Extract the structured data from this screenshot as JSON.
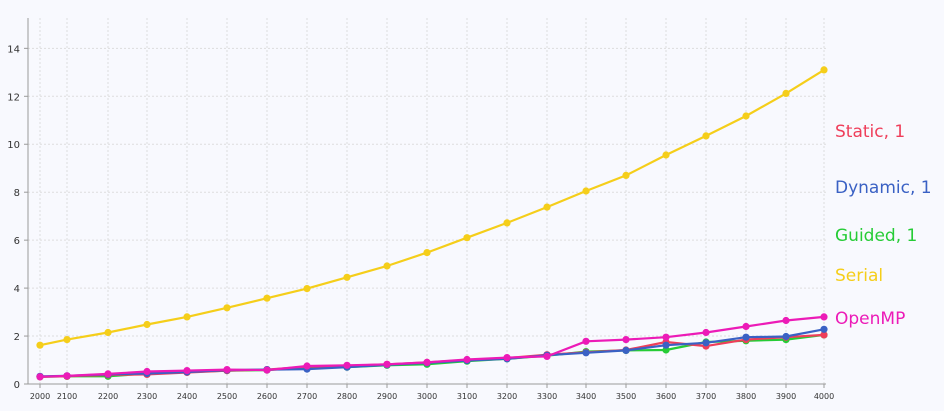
{
  "chart_data": {
    "type": "line",
    "title": "",
    "xlabel": "",
    "ylabel": "",
    "x": [
      2000,
      2100,
      2200,
      2300,
      2400,
      2500,
      2600,
      2700,
      2800,
      2900,
      3000,
      3100,
      3200,
      3300,
      3400,
      3500,
      3600,
      3700,
      3800,
      3900,
      4000
    ],
    "y_ticks": [
      0,
      2,
      4,
      6,
      8,
      10,
      12,
      14
    ],
    "ylim": [
      0,
      15
    ],
    "grid": true,
    "legend_position": "right",
    "series": [
      {
        "name": "Static, 1",
        "color": "#ef3e5a",
        "values": [
          0.3,
          0.32,
          0.38,
          0.4,
          0.48,
          0.56,
          0.6,
          0.72,
          0.75,
          0.82,
          0.9,
          1.0,
          1.08,
          1.22,
          1.32,
          1.42,
          1.75,
          1.58,
          1.85,
          1.95,
          2.05
        ]
      },
      {
        "name": "Dynamic, 1",
        "color": "#3a61c4",
        "values": [
          0.32,
          0.34,
          0.4,
          0.44,
          0.5,
          0.58,
          0.6,
          0.62,
          0.7,
          0.8,
          0.88,
          0.98,
          1.05,
          1.2,
          1.3,
          1.4,
          1.62,
          1.72,
          1.95,
          1.98,
          2.28
        ]
      },
      {
        "name": "Guided, 1",
        "color": "#26cc36",
        "values": [
          0.3,
          0.32,
          0.32,
          0.44,
          0.5,
          0.56,
          0.58,
          0.7,
          0.7,
          0.78,
          0.82,
          0.95,
          1.05,
          1.18,
          1.35,
          1.4,
          1.42,
          1.75,
          1.8,
          1.85,
          2.05
        ]
      },
      {
        "name": "Serial",
        "color": "#f5ce1a",
        "values": [
          1.62,
          1.85,
          2.15,
          2.48,
          2.8,
          3.18,
          3.58,
          3.98,
          4.45,
          4.92,
          5.48,
          6.1,
          6.72,
          7.38,
          8.05,
          8.7,
          9.55,
          10.35,
          11.18,
          12.12,
          13.1
        ]
      },
      {
        "name": "OpenMP",
        "color": "#ec1bb7",
        "values": [
          0.3,
          0.34,
          0.42,
          0.52,
          0.56,
          0.6,
          0.58,
          0.75,
          0.78,
          0.82,
          0.9,
          1.02,
          1.1,
          1.15,
          1.78,
          1.85,
          1.95,
          2.15,
          2.4,
          2.65,
          2.8
        ]
      }
    ]
  }
}
